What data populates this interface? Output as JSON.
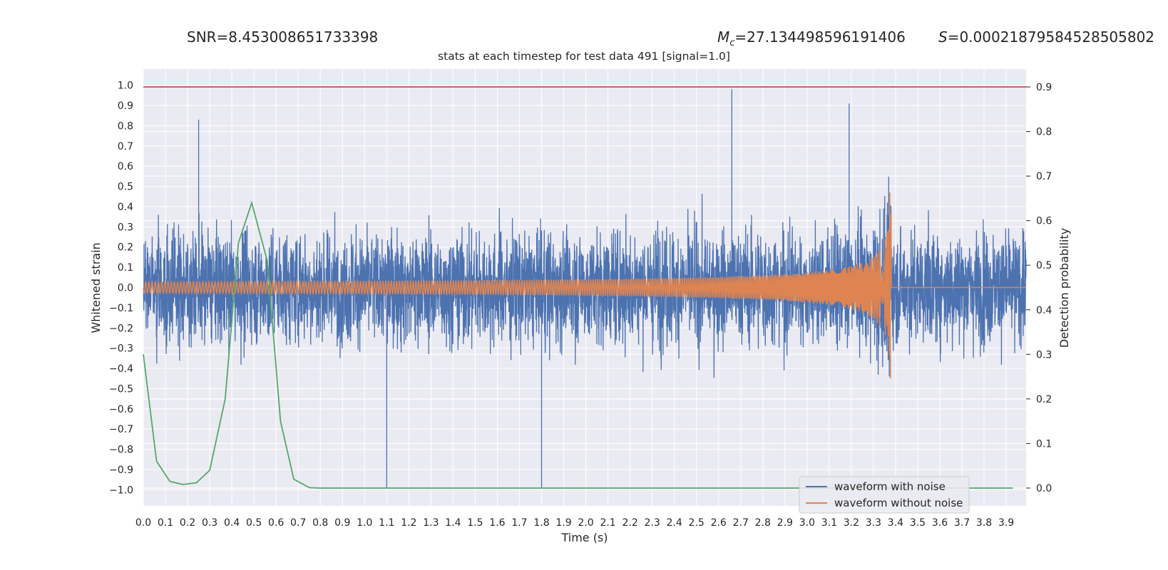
{
  "header": {
    "snr": "SNR=8.453008651733398",
    "mc_symbol": "M",
    "mc_sub": "c",
    "mc_value": "=27.134498596191406",
    "s_symbol": "S",
    "s_value": "=0.00021879584528505802"
  },
  "chart_data": {
    "type": "line",
    "title": "stats at each timestep for test data 491 [signal=1.0]",
    "xlabel": "Time (s)",
    "ylabel": "Whitened strain",
    "y2label": "Detection probability",
    "xlim": [
      0.0,
      3.99
    ],
    "ylim": [
      -1.08,
      1.08
    ],
    "y2lim": [
      -0.04,
      0.94
    ],
    "x_ticks": [
      "0.0",
      "0.1",
      "0.2",
      "0.3",
      "0.4",
      "0.5",
      "0.6",
      "0.7",
      "0.8",
      "0.9",
      "1.0",
      "1.1",
      "1.2",
      "1.3",
      "1.4",
      "1.5",
      "1.6",
      "1.7",
      "1.8",
      "1.9",
      "2.0",
      "2.1",
      "2.2",
      "2.3",
      "2.4",
      "2.5",
      "2.6",
      "2.7",
      "2.8",
      "2.9",
      "3.0",
      "3.1",
      "3.2",
      "3.3",
      "3.4",
      "3.5",
      "3.6",
      "3.7",
      "3.8",
      "3.9"
    ],
    "y_ticks": [
      "1.0",
      "0.9",
      "0.8",
      "0.7",
      "0.6",
      "0.5",
      "0.4",
      "0.3",
      "0.2",
      "0.1",
      "0.0",
      "−0.1",
      "−0.2",
      "−0.3",
      "−0.4",
      "−0.5",
      "−0.6",
      "−0.7",
      "−0.8",
      "−0.9",
      "−1.0"
    ],
    "y2_ticks": [
      "0.9",
      "0.8",
      "0.7",
      "0.6",
      "0.5",
      "0.4",
      "0.3",
      "0.2",
      "0.1",
      "0.0"
    ],
    "grid": true,
    "legend_position": "lower-right",
    "series": [
      {
        "name": "waveform with noise",
        "color": "#4c72b0",
        "axis": "left",
        "description": "dense white-noise trace spanning 0.0–3.99 s, amplitude mostly within ±0.5, peaks to ~0.98 near 2.66 s and ~−0.99 near 1.1 s and 1.8 s"
      },
      {
        "name": "waveform without noise",
        "color": "#dd8452",
        "axis": "left",
        "chirp": {
          "t_merger": 3.38,
          "amp_start": 0.01,
          "amp_peak": 0.4,
          "f_start": 12,
          "f_end": 60,
          "peak_max": 0.47,
          "peak_min": -0.45
        }
      },
      {
        "name": "",
        "color": "#55a868",
        "axis": "right",
        "x": [
          0.0,
          0.06,
          0.12,
          0.18,
          0.24,
          0.3,
          0.37,
          0.43,
          0.49,
          0.56,
          0.62,
          0.68,
          0.75,
          0.8,
          3.93
        ],
        "y": [
          0.3,
          0.06,
          0.015,
          0.008,
          0.012,
          0.04,
          0.2,
          0.55,
          0.64,
          0.51,
          0.15,
          0.02,
          0.001,
          0.0,
          0.0
        ]
      },
      {
        "name": "",
        "color": "#c44e52",
        "axis": "right",
        "constant": 0.9
      }
    ],
    "legend": [
      "waveform with noise",
      "waveform without noise"
    ]
  }
}
